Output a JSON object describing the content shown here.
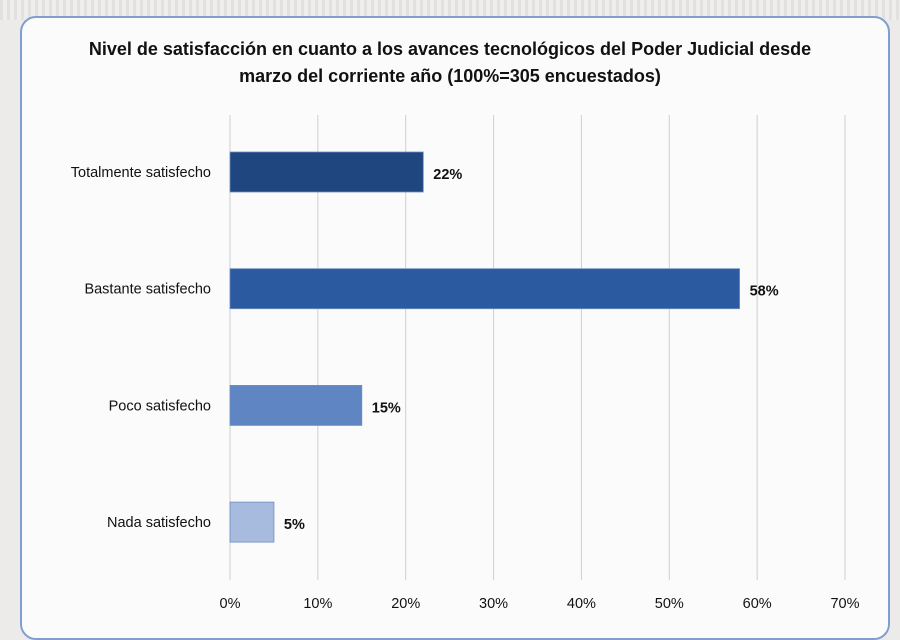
{
  "chart_data": {
    "type": "bar",
    "orientation": "horizontal",
    "title": "Nivel de satisfacción en cuanto a los avances tecnológicos del Poder Judicial desde marzo del corriente año (100%=305 encuestados)",
    "categories": [
      "Totalmente satisfecho",
      "Bastante satisfecho",
      "Poco satisfecho",
      "Nada satisfecho"
    ],
    "values": [
      22,
      58,
      15,
      5
    ],
    "value_labels": [
      "22%",
      "58%",
      "15%",
      "5%"
    ],
    "colors": [
      "#1f467f",
      "#2b5aa0",
      "#5f86c3",
      "#a6bbdd"
    ],
    "xlim": [
      0,
      70
    ],
    "x_ticks": [
      "0%",
      "10%",
      "20%",
      "30%",
      "40%",
      "50%",
      "60%",
      "70%"
    ],
    "xlabel": "",
    "ylabel": "",
    "grid": true,
    "legend": "none"
  }
}
